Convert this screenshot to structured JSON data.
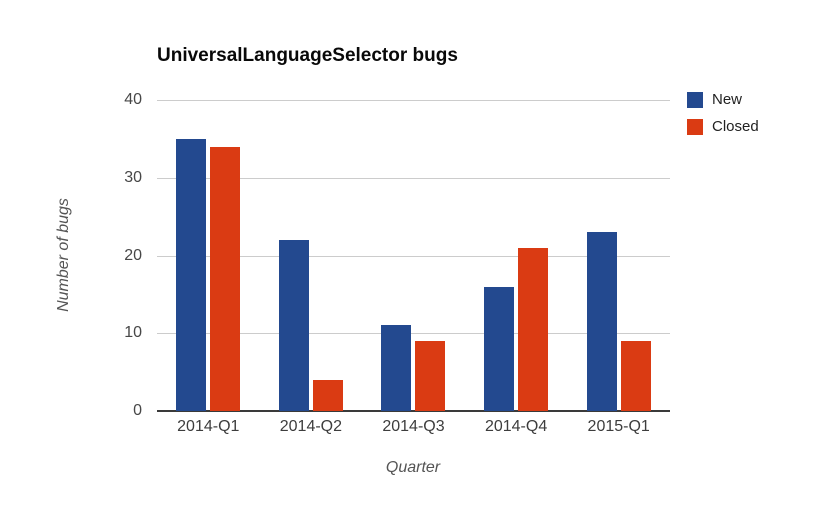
{
  "chart_data": {
    "type": "bar",
    "title": "UniversalLanguageSelector bugs",
    "xlabel": "Quarter",
    "ylabel": "Number of bugs",
    "categories": [
      "2014-Q1",
      "2014-Q2",
      "2014-Q3",
      "2014-Q4",
      "2015-Q1"
    ],
    "series": [
      {
        "name": "New",
        "color": "#23498f",
        "values": [
          35,
          22,
          11,
          16,
          23
        ]
      },
      {
        "name": "Closed",
        "color": "#da3b13",
        "values": [
          34,
          4,
          9,
          21,
          9
        ]
      }
    ],
    "ylim": [
      0,
      40
    ],
    "yticks": [
      0,
      10,
      20,
      30,
      40
    ],
    "grid": true,
    "legend_position": "right",
    "grid_color": "#cccccc",
    "axis_color": "#3a3a3a"
  }
}
